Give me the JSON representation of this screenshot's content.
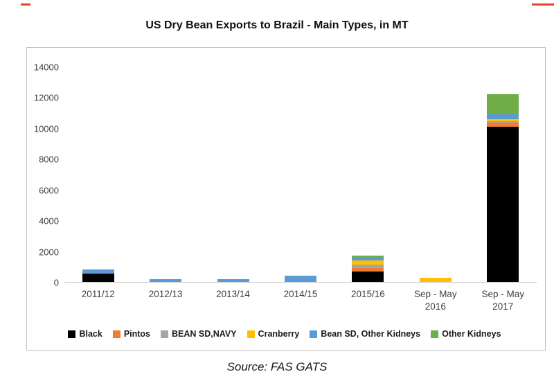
{
  "page": {
    "title": "US Dry Bean Exports to Brazil - Main Types, in MT",
    "source": "Source: FAS GATS"
  },
  "chart_data": {
    "type": "bar",
    "stacked": true,
    "title": "US Dry Bean Exports to Brazil - Main Types, in MT",
    "categories": [
      "2011/12",
      "2012/13",
      "2013/14",
      "2014/15",
      "2015/16",
      "Sep - May 2016",
      "Sep - May 2017"
    ],
    "series": [
      {
        "name": "Black",
        "color": "#000000",
        "values": [
          550,
          0,
          0,
          0,
          700,
          0,
          10100
        ]
      },
      {
        "name": "Pintos",
        "color": "#ED7D31",
        "values": [
          0,
          0,
          0,
          0,
          200,
          0,
          300
        ]
      },
      {
        "name": "BEAN SD,NAVY",
        "color": "#A5A5A5",
        "values": [
          0,
          0,
          0,
          0,
          250,
          0,
          100
        ]
      },
      {
        "name": "Cranberry",
        "color": "#FFC000",
        "values": [
          0,
          0,
          0,
          0,
          250,
          250,
          100
        ]
      },
      {
        "name": "Bean SD, Other Kidneys",
        "color": "#5B9BD5",
        "values": [
          250,
          200,
          175,
          400,
          200,
          0,
          350
        ]
      },
      {
        "name": "Other Kidneys",
        "color": "#70AD47",
        "values": [
          0,
          0,
          0,
          0,
          100,
          0,
          1300
        ]
      }
    ],
    "ylim": [
      0,
      14000
    ],
    "ytick_step": 2000,
    "grid": false,
    "legend_position": "bottom",
    "source": "Source: FAS GATS"
  }
}
